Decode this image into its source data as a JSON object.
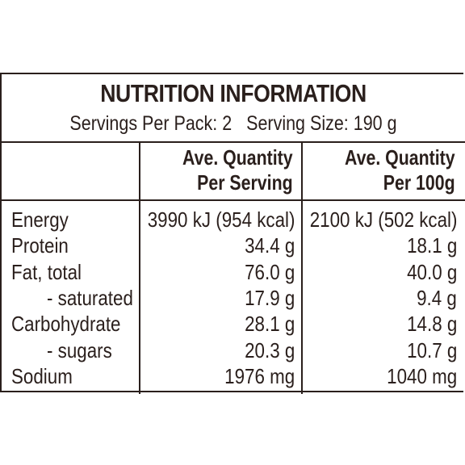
{
  "panel": {
    "title": "NUTRITION INFORMATION",
    "servings_per_pack": "Servings Per Pack: 2",
    "serving_size": "Serving Size: 190 g"
  },
  "columns": {
    "per_serving": [
      "Ave. Quantity",
      "Per Serving"
    ],
    "per_100g": [
      "Ave. Quantity",
      "Per 100g"
    ]
  },
  "rows": [
    {
      "label": "Energy",
      "per_serving": "3990 kJ (954 kcal)",
      "per_100g": "2100 kJ (502 kcal)",
      "indent": false
    },
    {
      "label": "Protein",
      "per_serving": "34.4 g",
      "per_100g": "18.1 g",
      "indent": false
    },
    {
      "label": "Fat, total",
      "per_serving": "76.0 g",
      "per_100g": "40.0 g",
      "indent": false
    },
    {
      "label": "- saturated",
      "per_serving": "17.9 g",
      "per_100g": "9.4 g",
      "indent": true
    },
    {
      "label": "Carbohydrate",
      "per_serving": "28.1 g",
      "per_100g": "14.8 g",
      "indent": false
    },
    {
      "label": "- sugars",
      "per_serving": "20.3 g",
      "per_100g": "10.7 g",
      "indent": true
    },
    {
      "label": "Sodium",
      "per_serving": "1976 mg",
      "per_100g": "1040 mg",
      "indent": false
    }
  ],
  "colors": {
    "ink": "#2a1f1c",
    "background": "#ffffff"
  }
}
